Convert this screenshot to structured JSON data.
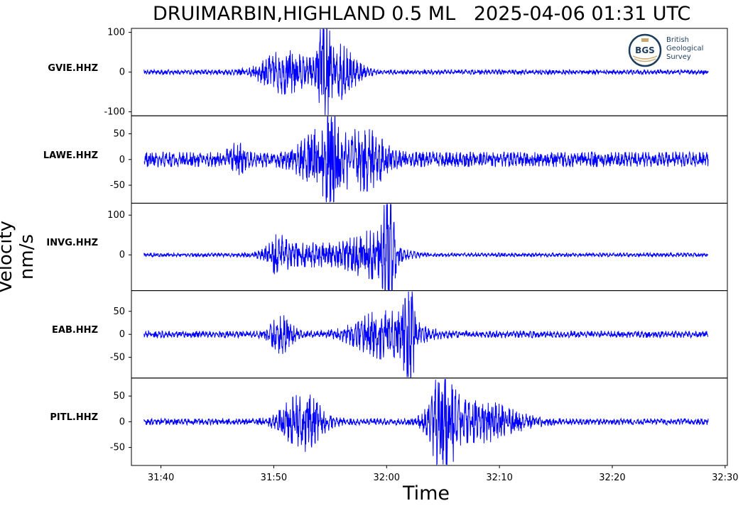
{
  "chart_data": {
    "type": "line",
    "title": "DRUIMARBIN,HIGHLAND 0.5 ML   2025-04-06 01:31 UTC",
    "xlabel": "Time",
    "ylabel": "Velocity nm/s",
    "x_tick_labels": [
      "31:40",
      "31:50",
      "32:00",
      "32:10",
      "32:20",
      "32:30"
    ],
    "x_tick_seconds": [
      0,
      600,
      1200,
      1800,
      2400,
      3000
    ],
    "xlim_seconds": [
      -157,
      3012
    ],
    "trace_start_seconds": -90,
    "trace_end_seconds": 2910,
    "line_color": "#0000ff",
    "panels": [
      {
        "station": "GVIE.HHZ",
        "ylim": [
          -110,
          110
        ],
        "yticks": [
          100,
          0,
          -100
        ],
        "ytick_labels": [
          "100",
          "0",
          "-100"
        ],
        "background_amplitude": 5,
        "bursts": [
          {
            "t": 660,
            "amp": 42,
            "width": 200
          },
          {
            "t": 870,
            "amp": 98,
            "width": 40
          },
          {
            "t": 940,
            "amp": 55,
            "width": 150
          }
        ]
      },
      {
        "station": "LAWE.HHZ",
        "ylim": [
          -85,
          85
        ],
        "yticks": [
          50,
          0,
          -50
        ],
        "ytick_labels": [
          "50",
          "0",
          "-50"
        ],
        "background_amplitude": 12,
        "bursts": [
          {
            "t": 400,
            "amp": 22,
            "width": 60
          },
          {
            "t": 910,
            "amp": 75,
            "width": 40
          },
          {
            "t": 880,
            "amp": 45,
            "width": 200
          },
          {
            "t": 1100,
            "amp": 35,
            "width": 150
          }
        ]
      },
      {
        "station": "INVG.HHZ",
        "ylim": [
          -90,
          130
        ],
        "yticks": [
          100,
          0
        ],
        "ytick_labels": [
          "100",
          "0"
        ],
        "background_amplitude": 4,
        "bursts": [
          {
            "t": 620,
            "amp": 30,
            "width": 80
          },
          {
            "t": 800,
            "amp": 22,
            "width": 300
          },
          {
            "t": 1210,
            "amp": 125,
            "width": 40
          },
          {
            "t": 1120,
            "amp": 45,
            "width": 200
          }
        ]
      },
      {
        "station": "EAB.HHZ",
        "ylim": [
          -95,
          95
        ],
        "yticks": [
          50,
          0,
          -50
        ],
        "ytick_labels": [
          "50",
          "0",
          "-50"
        ],
        "background_amplitude": 6,
        "bursts": [
          {
            "t": 640,
            "amp": 30,
            "width": 90
          },
          {
            "t": 1190,
            "amp": 40,
            "width": 250
          },
          {
            "t": 1320,
            "amp": 90,
            "width": 40
          }
        ]
      },
      {
        "station": "PITL.HHZ",
        "ylim": [
          -85,
          85
        ],
        "yticks": [
          50,
          0,
          -50
        ],
        "ytick_labels": [
          "50",
          "0",
          "-50"
        ],
        "background_amplitude": 5,
        "bursts": [
          {
            "t": 750,
            "amp": 45,
            "width": 160
          },
          {
            "t": 1500,
            "amp": 75,
            "width": 100
          },
          {
            "t": 1700,
            "amp": 30,
            "width": 300
          }
        ]
      }
    ]
  },
  "logo": {
    "mark": "BGS",
    "lines": [
      "British",
      "Geological",
      "Survey"
    ],
    "ring_color": "#1d3d5c",
    "accent_color": "#c8a86b"
  }
}
